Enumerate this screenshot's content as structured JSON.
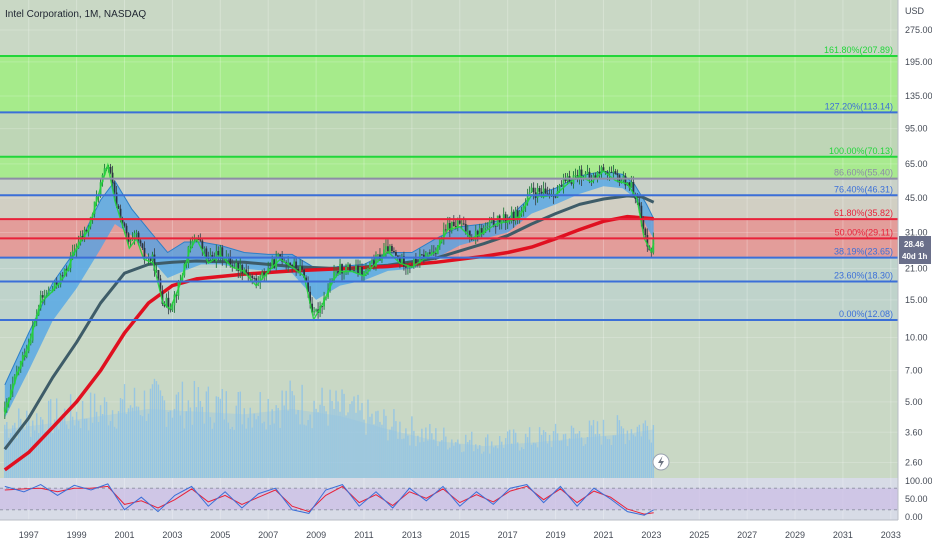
{
  "header": {
    "title": "Intel Corporation, 1M, NASDAQ"
  },
  "price_axis": {
    "currency": "USD",
    "ticks": [
      "275.00",
      "195.00",
      "135.00",
      "95.00",
      "65.00",
      "45.00",
      "31.00",
      "21.00",
      "15.00",
      "10.00",
      "7.00",
      "5.00",
      "3.60",
      "2.60"
    ]
  },
  "price_badge": {
    "price": "28.46",
    "countdown": "40d 1h"
  },
  "osc_axis": {
    "ticks": [
      "100.00",
      "50.00",
      "0.00"
    ]
  },
  "time_axis": {
    "ticks": [
      "1997",
      "1999",
      "2001",
      "2003",
      "2005",
      "2007",
      "2009",
      "2011",
      "2013",
      "2015",
      "2017",
      "2019",
      "2021",
      "2023",
      "2025",
      "2027",
      "2029",
      "2031",
      "2033"
    ]
  },
  "colors": {
    "fib_green_line": "#22d63a",
    "fib_blue_line": "#3b6fd8",
    "fib_red_line": "#e8223a",
    "fib_gray_line": "#8d8da6",
    "fib_green_zone": "#a4ec88",
    "fib_red_zone": "#e59a98",
    "sma_red": "#e01020",
    "sma_gray": "#3e5c68",
    "ribbon_blue": "#4aa3e8",
    "volume": "#8fc3e6",
    "osc_k": "#3b6fd8",
    "osc_d": "#e8223a"
  },
  "chart_data": {
    "type": "line",
    "title": "Intel Corporation, 1M, NASDAQ",
    "xlabel": "",
    "ylabel": "USD",
    "y_scale": "log",
    "ylim": [
      2.2,
      380
    ],
    "xlim": [
      1995.8,
      2033.3
    ],
    "series": [
      {
        "x": [
          1996.0,
          1996.5,
          1997.0,
          1997.5,
          1998.0,
          1998.5,
          1999.0,
          1999.5,
          2000.0,
          2000.3,
          2000.6,
          2000.9,
          2001.2,
          2001.5,
          2001.8,
          2002.2,
          2002.6,
          2002.9,
          2003.3,
          2003.7,
          2004.0,
          2004.5,
          2005.0,
          2005.5,
          2006.0,
          2006.5,
          2007.0,
          2007.5,
          2008.0,
          2008.5,
          2008.9,
          2009.3,
          2009.7,
          2010.0,
          2010.5,
          2011.0,
          2011.5,
          2012.0,
          2012.5,
          2013.0,
          2013.5,
          2014.0,
          2014.5,
          2015.0,
          2015.5,
          2016.0,
          2016.5,
          2017.0,
          2017.5,
          2018.0,
          2018.5,
          2019.0,
          2019.5,
          2020.0,
          2020.5,
          2021.0,
          2021.5,
          2022.0,
          2022.4,
          2022.7,
          2023.0,
          2023.1
        ],
        "values": [
          4.5,
          6.8,
          9.5,
          15,
          17,
          20,
          27,
          33,
          52,
          66,
          45,
          35,
          27,
          30,
          24,
          23,
          15,
          14,
          18,
          26,
          30,
          23,
          25,
          22,
          21,
          18,
          21,
          24,
          22,
          20,
          12.5,
          15,
          19,
          21,
          21,
          20,
          23,
          26,
          23,
          22,
          24,
          26,
          33,
          34,
          30,
          32,
          35,
          36,
          38,
          48,
          47,
          48,
          54,
          59,
          55,
          62,
          56,
          54,
          46,
          30,
          26,
          28.46
        ]
      }
    ],
    "fib_levels": [
      {
        "label": "161.80%(207.89)",
        "ratio": 1.618,
        "price": 207.89,
        "color": "green"
      },
      {
        "label": "127.20%(113.14)",
        "ratio": 1.272,
        "price": 113.14,
        "color": "blue"
      },
      {
        "label": "100.00%(70.13)",
        "ratio": 1.0,
        "price": 70.13,
        "color": "green"
      },
      {
        "label": "86.60%(55.40)",
        "ratio": 0.866,
        "price": 55.4,
        "color": "gray"
      },
      {
        "label": "76.40%(46.31)",
        "ratio": 0.764,
        "price": 46.31,
        "color": "blue"
      },
      {
        "label": "61.80%(35.82)",
        "ratio": 0.618,
        "price": 35.82,
        "color": "red"
      },
      {
        "label": "50.00%(29.11)",
        "ratio": 0.5,
        "price": 29.11,
        "color": "red"
      },
      {
        "label": "38.19%(23.65)",
        "ratio": 0.382,
        "price": 23.65,
        "color": "blue"
      },
      {
        "label": "23.60%(18.30)",
        "ratio": 0.236,
        "price": 18.3,
        "color": "blue"
      },
      {
        "label": "0.00%(12.08)",
        "ratio": 0.0,
        "price": 12.08,
        "color": "blue"
      }
    ],
    "sma_red": {
      "x": [
        1996.0,
        1997.0,
        1998.0,
        1999.0,
        2000.0,
        2001.0,
        2002.0,
        2003.0,
        2004.0,
        2006.0,
        2008.0,
        2010.0,
        2012.0,
        2014.0,
        2016.0,
        2017.0,
        2018.0,
        2019.0,
        2020.0,
        2021.0,
        2022.0,
        2023.1
      ],
      "values": [
        2.4,
        2.9,
        3.8,
        5.0,
        7.0,
        10.5,
        14.5,
        17.5,
        18.8,
        19.8,
        20.5,
        21.0,
        21.5,
        22.5,
        24.0,
        25.0,
        26.5,
        29.0,
        32.0,
        35.0,
        36.8,
        36.0
      ]
    },
    "sma_gray": {
      "x": [
        1996.0,
        1997.0,
        1998.0,
        1999.0,
        2000.0,
        2001.0,
        2002.0,
        2003.0,
        2004.0,
        2006.0,
        2008.0,
        2010.0,
        2012.0,
        2014.0,
        2016.0,
        2017.0,
        2018.0,
        2019.0,
        2020.0,
        2021.0,
        2022.0,
        2022.6,
        2023.1
      ],
      "values": [
        3.0,
        4.2,
        6.5,
        9.5,
        14.5,
        20.0,
        22.0,
        22.5,
        22.8,
        22.5,
        21.5,
        21.0,
        21.8,
        23.5,
        27.5,
        30.0,
        34.0,
        38.0,
        42.0,
        44.5,
        46.0,
        45.5,
        43.0
      ]
    },
    "ribbon_upper": {
      "x": [
        1996.0,
        1997.0,
        1998.0,
        1999.0,
        2000.0,
        2000.6,
        2001.3,
        2002.0,
        2002.8,
        2003.5,
        2004.2,
        2005.0,
        2006.0,
        2007.0,
        2008.0,
        2009.0,
        2010.0,
        2011.0,
        2012.0,
        2013.0,
        2014.0,
        2015.0,
        2016.0,
        2017.0,
        2018.0,
        2019.0,
        2020.0,
        2021.0,
        2021.8,
        2022.3,
        2022.8,
        2023.1
      ],
      "values": [
        6.0,
        10.5,
        18.0,
        26.0,
        44.0,
        54.0,
        40.0,
        32.0,
        25.0,
        28.0,
        28.0,
        27.0,
        25.0,
        24.5,
        24.5,
        21.0,
        21.5,
        22.0,
        25.0,
        25.0,
        29.0,
        33.0,
        34.0,
        36.0,
        46.0,
        50.0,
        57.0,
        60.0,
        58.0,
        52.0,
        42.0,
        36.0
      ]
    },
    "ribbon_lower": {
      "x": [
        1996.0,
        1997.0,
        1998.0,
        1999.0,
        2000.0,
        2000.6,
        2001.3,
        2002.0,
        2002.8,
        2003.5,
        2004.2,
        2005.0,
        2006.0,
        2007.0,
        2008.0,
        2009.0,
        2010.0,
        2011.0,
        2012.0,
        2013.0,
        2014.0,
        2015.0,
        2016.0,
        2017.0,
        2018.0,
        2019.0,
        2020.0,
        2021.0,
        2021.8,
        2022.3,
        2022.8,
        2023.1
      ],
      "values": [
        4.2,
        7.0,
        12.0,
        17.0,
        26.0,
        34.0,
        30.0,
        24.0,
        19.0,
        20.5,
        22.0,
        22.0,
        21.0,
        20.5,
        20.0,
        15.0,
        17.5,
        18.5,
        20.5,
        21.0,
        23.5,
        27.0,
        29.0,
        31.0,
        38.0,
        42.0,
        47.0,
        51.0,
        50.0,
        45.0,
        33.0,
        29.0
      ]
    },
    "volume_levels": {
      "x": [
        1996.0,
        1998.0,
        2000.0,
        2002.0,
        2004.0,
        2006.0,
        2008.0,
        2010.0,
        2012.0,
        2014.0,
        2016.0,
        2018.0,
        2020.0,
        2022.0,
        2023.1
      ],
      "values": [
        0.55,
        0.62,
        0.7,
        0.78,
        0.75,
        0.72,
        0.78,
        0.7,
        0.55,
        0.42,
        0.36,
        0.4,
        0.45,
        0.5,
        0.55
      ]
    },
    "oscillator": {
      "ylim": [
        0,
        100
      ],
      "k": {
        "x": [
          1996.0,
          1996.8,
          1997.5,
          1998.2,
          1998.9,
          1999.6,
          2000.3,
          2001.0,
          2001.7,
          2002.4,
          2003.1,
          2003.8,
          2004.5,
          2005.2,
          2005.9,
          2006.6,
          2007.3,
          2008.0,
          2008.7,
          2009.4,
          2010.1,
          2010.8,
          2011.5,
          2012.2,
          2012.9,
          2013.6,
          2014.3,
          2015.0,
          2015.7,
          2016.4,
          2017.1,
          2017.8,
          2018.5,
          2019.2,
          2019.9,
          2020.6,
          2021.3,
          2022.0,
          2022.7,
          2023.1
        ],
        "values": [
          85,
          70,
          90,
          60,
          88,
          75,
          92,
          20,
          55,
          15,
          60,
          85,
          30,
          70,
          25,
          65,
          80,
          20,
          10,
          75,
          90,
          30,
          70,
          25,
          80,
          45,
          85,
          30,
          70,
          35,
          80,
          90,
          40,
          85,
          30,
          80,
          50,
          15,
          5,
          20
        ]
      },
      "d": {
        "x": [
          1996.0,
          1996.8,
          1997.5,
          1998.2,
          1998.9,
          1999.6,
          2000.3,
          2001.0,
          2001.7,
          2002.4,
          2003.1,
          2003.8,
          2004.5,
          2005.2,
          2005.9,
          2006.6,
          2007.3,
          2008.0,
          2008.7,
          2009.4,
          2010.1,
          2010.8,
          2011.5,
          2012.2,
          2012.9,
          2013.6,
          2014.3,
          2015.0,
          2015.7,
          2016.4,
          2017.1,
          2017.8,
          2018.5,
          2019.2,
          2019.9,
          2020.6,
          2021.3,
          2022.0,
          2022.7,
          2023.1
        ],
        "values": [
          75,
          78,
          80,
          70,
          80,
          80,
          85,
          35,
          45,
          25,
          48,
          78,
          42,
          60,
          35,
          55,
          75,
          30,
          15,
          60,
          85,
          40,
          62,
          32,
          70,
          52,
          78,
          40,
          62,
          42,
          72,
          85,
          48,
          78,
          40,
          72,
          55,
          22,
          8,
          12
        ]
      }
    }
  }
}
